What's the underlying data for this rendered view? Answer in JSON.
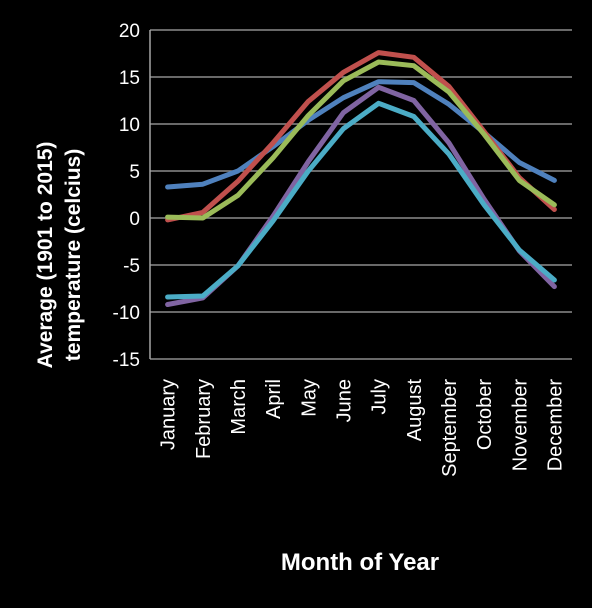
{
  "chart_data": {
    "type": "line",
    "title": "",
    "xlabel": "Month of Year",
    "ylabel_line1": "Average (1901 to 2015)",
    "ylabel_line2": "temperature (celcius)",
    "categories": [
      "January",
      "February",
      "March",
      "April",
      "May",
      "June",
      "July",
      "August",
      "September",
      "October",
      "November",
      "December"
    ],
    "ylim": [
      -15,
      20
    ],
    "yticks": [
      20,
      15,
      10,
      5,
      0,
      -5,
      -10,
      -15
    ],
    "grid": true,
    "legend": "none",
    "series": [
      {
        "color": "#4f81bd",
        "values": [
          3.3,
          3.6,
          5.0,
          7.6,
          10.4,
          12.8,
          14.5,
          14.4,
          12.1,
          9.1,
          5.9,
          4.0
        ]
      },
      {
        "color": "#c0504d",
        "values": [
          -0.2,
          0.6,
          3.9,
          8.0,
          12.4,
          15.5,
          17.6,
          17.1,
          14.0,
          9.2,
          4.3,
          0.9
        ]
      },
      {
        "color": "#9bbb59",
        "values": [
          0.1,
          0.0,
          2.4,
          6.4,
          10.9,
          14.6,
          16.6,
          16.2,
          13.4,
          8.9,
          4.0,
          1.4
        ]
      },
      {
        "color": "#8064a2",
        "values": [
          -9.2,
          -8.5,
          -5.1,
          0.2,
          6.0,
          11.2,
          13.9,
          12.5,
          8.0,
          2.0,
          -3.5,
          -7.3
        ]
      },
      {
        "color": "#4bacc6",
        "values": [
          -8.4,
          -8.3,
          -5.1,
          -0.3,
          5.0,
          9.5,
          12.2,
          10.8,
          6.8,
          1.4,
          -3.4,
          -6.6
        ]
      }
    ]
  }
}
